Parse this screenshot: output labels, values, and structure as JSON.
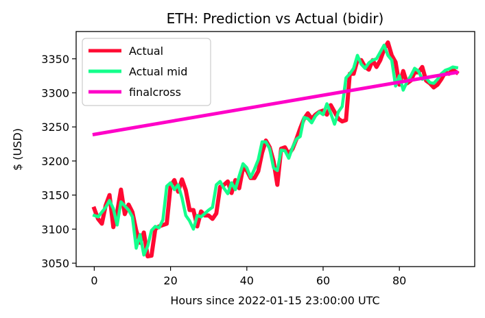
{
  "chart_data": {
    "type": "line",
    "title": "ETH: Prediction vs Actual (bidir)",
    "xlabel": "Hours since 2022-01-15 23:00:00 UTC",
    "ylabel": "$ (USD)",
    "xlim": [
      -4.75,
      99.75
    ],
    "ylim": [
      3045,
      3390
    ],
    "x_ticks": [
      0,
      20,
      40,
      60,
      80
    ],
    "y_ticks": [
      3050,
      3100,
      3150,
      3200,
      3250,
      3300,
      3350
    ],
    "grid": false,
    "legend_position": "top-left",
    "series": [
      {
        "name": "Actual",
        "color": "#ff0a32",
        "x": [
          0,
          1,
          2,
          3,
          4,
          5,
          6,
          7,
          8,
          9,
          10,
          11,
          12,
          13,
          14,
          15,
          16,
          17,
          18,
          19,
          20,
          21,
          22,
          23,
          24,
          25,
          26,
          27,
          28,
          29,
          30,
          31,
          32,
          33,
          34,
          35,
          36,
          37,
          38,
          39,
          40,
          41,
          42,
          43,
          44,
          45,
          46,
          47,
          48,
          49,
          50,
          51,
          52,
          53,
          54,
          55,
          56,
          57,
          58,
          59,
          60,
          61,
          62,
          63,
          64,
          65,
          66,
          67,
          68,
          69,
          70,
          71,
          72,
          73,
          74,
          75,
          76,
          77,
          78,
          79,
          80,
          81,
          82,
          83,
          84,
          85,
          86,
          87,
          88,
          89,
          90,
          91,
          92,
          93,
          94,
          95
        ],
        "y": [
          3130,
          3115,
          3108,
          3135,
          3150,
          3103,
          3125,
          3158,
          3122,
          3136,
          3125,
          3098,
          3080,
          3095,
          3060,
          3061,
          3100,
          3104,
          3106,
          3108,
          3163,
          3172,
          3155,
          3173,
          3157,
          3128,
          3128,
          3104,
          3126,
          3120,
          3120,
          3115,
          3123,
          3162,
          3165,
          3170,
          3153,
          3172,
          3160,
          3190,
          3186,
          3175,
          3175,
          3185,
          3212,
          3230,
          3220,
          3200,
          3165,
          3218,
          3220,
          3210,
          3218,
          3232,
          3248,
          3262,
          3270,
          3262,
          3268,
          3272,
          3274,
          3268,
          3282,
          3272,
          3262,
          3258,
          3260,
          3328,
          3328,
          3348,
          3348,
          3338,
          3334,
          3348,
          3338,
          3348,
          3364,
          3374,
          3355,
          3345,
          3312,
          3332,
          3314,
          3318,
          3330,
          3330,
          3338,
          3318,
          3314,
          3308,
          3312,
          3320,
          3330,
          3328,
          3334,
          3330
        ]
      },
      {
        "name": "Actual mid",
        "color": "#14ff8c",
        "x": [
          0,
          1,
          2,
          3,
          4,
          5,
          6,
          7,
          8,
          9,
          10,
          11,
          12,
          13,
          14,
          15,
          16,
          17,
          18,
          19,
          20,
          21,
          22,
          23,
          24,
          25,
          26,
          27,
          28,
          29,
          30,
          31,
          32,
          33,
          34,
          35,
          36,
          37,
          38,
          39,
          40,
          41,
          42,
          43,
          44,
          45,
          46,
          47,
          48,
          49,
          50,
          51,
          52,
          53,
          54,
          55,
          56,
          57,
          58,
          59,
          60,
          61,
          62,
          63,
          64,
          65,
          66,
          67,
          68,
          69,
          70,
          71,
          72,
          73,
          74,
          75,
          76,
          77,
          78,
          79,
          80,
          81,
          82,
          83,
          84,
          85,
          86,
          87,
          88,
          89,
          90,
          91,
          92,
          93,
          94,
          95
        ],
        "y": [
          3120,
          3118,
          3125,
          3132,
          3142,
          3130,
          3106,
          3140,
          3134,
          3128,
          3118,
          3072,
          3092,
          3062,
          3075,
          3098,
          3104,
          3102,
          3114,
          3163,
          3168,
          3158,
          3165,
          3146,
          3120,
          3112,
          3100,
          3120,
          3118,
          3123,
          3128,
          3132,
          3165,
          3170,
          3160,
          3152,
          3168,
          3158,
          3178,
          3196,
          3190,
          3176,
          3188,
          3202,
          3228,
          3228,
          3218,
          3190,
          3186,
          3216,
          3215,
          3204,
          3220,
          3232,
          3236,
          3264,
          3262,
          3256,
          3266,
          3272,
          3268,
          3284,
          3270,
          3254,
          3272,
          3280,
          3322,
          3328,
          3336,
          3355,
          3342,
          3336,
          3344,
          3348,
          3350,
          3360,
          3370,
          3355,
          3348,
          3310,
          3325,
          3304,
          3316,
          3325,
          3336,
          3332,
          3320,
          3322,
          3315,
          3314,
          3320,
          3328,
          3333,
          3335,
          3338,
          3337
        ]
      },
      {
        "name": "finalcross",
        "color": "#ff00c8",
        "x": [
          0,
          95
        ],
        "y": [
          3239,
          3330
        ]
      }
    ]
  }
}
